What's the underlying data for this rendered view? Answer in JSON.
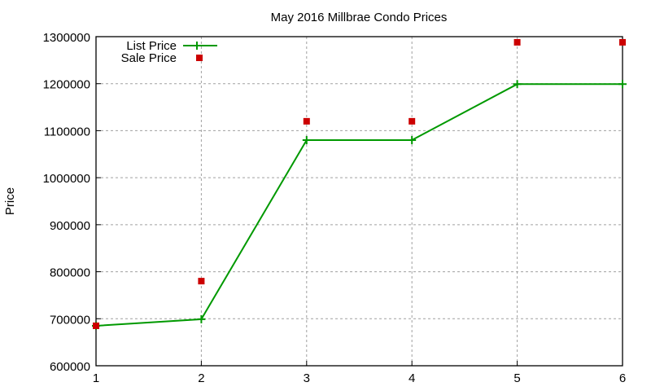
{
  "chart_data": {
    "type": "line",
    "title": "May 2016 Millbrae Condo Prices",
    "xlabel": "",
    "ylabel": "Price",
    "x": [
      1,
      2,
      3,
      4,
      5,
      6
    ],
    "xlim": [
      1,
      6
    ],
    "ylim": [
      600000,
      1300000
    ],
    "xticks": [
      "1",
      "2",
      "3",
      "4",
      "5",
      "6"
    ],
    "yticks": [
      "600000",
      "700000",
      "800000",
      "900000",
      "1000000",
      "1100000",
      "1200000",
      "1300000"
    ],
    "grid": true,
    "legend_position": "top-left",
    "series": [
      {
        "name": "List Price",
        "style": "line+points",
        "marker": "plus",
        "color": "#009900",
        "values": [
          685000,
          699000,
          1080000,
          1080000,
          1199000,
          1199000
        ]
      },
      {
        "name": "Sale Price",
        "style": "points",
        "marker": "square",
        "color": "#cc0000",
        "values": [
          685000,
          780000,
          1120000,
          1120000,
          1288000,
          1288000
        ]
      }
    ]
  }
}
